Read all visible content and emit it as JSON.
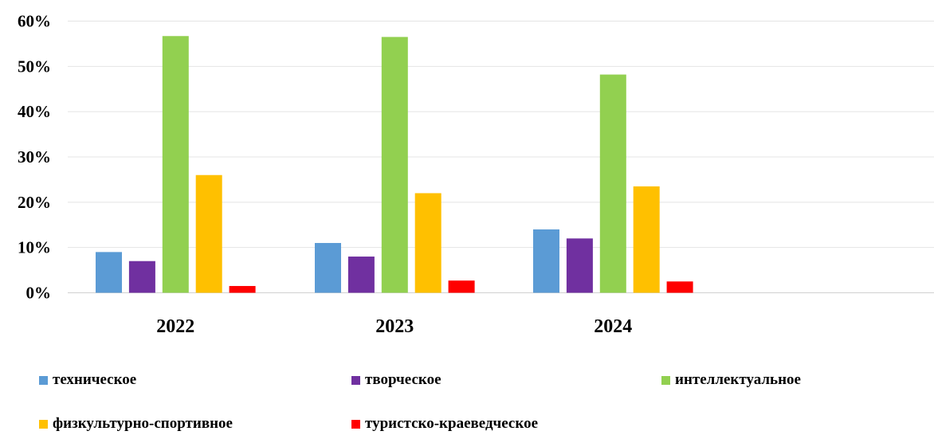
{
  "chart_data": {
    "type": "bar",
    "categories": [
      "2022",
      "2023",
      "2024"
    ],
    "series": [
      {
        "name": "техническое",
        "color": "#5b9bd5",
        "values": [
          9,
          11,
          14
        ]
      },
      {
        "name": "творческое",
        "color": "#7030a0",
        "values": [
          7,
          8,
          12
        ]
      },
      {
        "name": "интеллектуальное",
        "color": "#92d050",
        "values": [
          56.7,
          56.5,
          48.2
        ]
      },
      {
        "name": "физкультурно-спортивное",
        "color": "#ffc000",
        "values": [
          26,
          22,
          23.5
        ]
      },
      {
        "name": "туристско-краеведческое",
        "color": "#ff0000",
        "values": [
          1.5,
          2.7,
          2.5
        ]
      }
    ],
    "y_ticks": [
      "0%",
      "10%",
      "20%",
      "30%",
      "40%",
      "50%",
      "60%"
    ],
    "ylim": [
      0,
      60
    ],
    "grid": true,
    "legend_position": "bottom"
  }
}
